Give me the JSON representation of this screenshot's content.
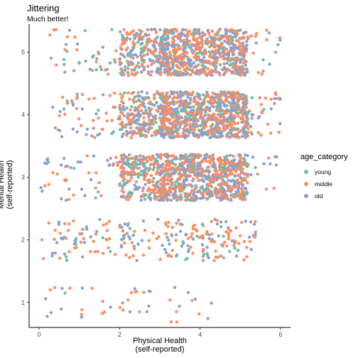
{
  "chart_data": {
    "type": "scatter",
    "title": "Jittering",
    "subtitle": "Much better!",
    "xlabel_lines": [
      "Physical Health",
      "(self-reported)"
    ],
    "ylabel_lines": [
      "Mental Health",
      "(self-reported)"
    ],
    "xlim": [
      -0.25,
      6.25
    ],
    "ylim": [
      0.6,
      5.45
    ],
    "x_ticks": [
      0,
      2,
      4,
      6
    ],
    "y_ticks": [
      1,
      2,
      3,
      4,
      5
    ],
    "grid": false,
    "legend_position": "right",
    "legend_title": "age_category",
    "series": [
      {
        "name": "young",
        "color": "#66C2A5"
      },
      {
        "name": "middle",
        "color": "#FC8D62"
      },
      {
        "name": "old",
        "color": "#8DA0CB"
      }
    ],
    "density_by_row": {
      "1": {
        "y_center": 0.95,
        "spread": 0.3,
        "count": 45,
        "x_range": [
          0.1,
          4.3
        ]
      },
      "2": {
        "y_center": 2.0,
        "spread": 0.33,
        "count": 230,
        "x_range": [
          0.05,
          5.4
        ]
      },
      "3": {
        "y_center": 3.0,
        "spread": 0.37,
        "count": 1100,
        "x_range": [
          0,
          6
        ]
      },
      "4": {
        "y_center": 4.0,
        "spread": 0.37,
        "count": 1150,
        "x_range": [
          0.3,
          6
        ]
      },
      "5": {
        "y_center": 5.0,
        "spread": 0.37,
        "count": 1000,
        "x_range": [
          0.2,
          6
        ]
      }
    }
  }
}
